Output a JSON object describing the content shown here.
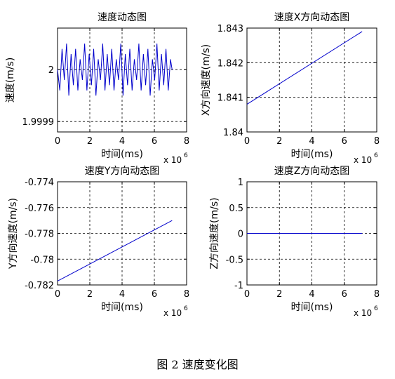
{
  "caption": "图 2  速度变化图",
  "chart_data": [
    {
      "type": "line",
      "title": "速度动态图",
      "xlabel": "时间(ms)",
      "ylabel": "速度(m/s)",
      "x_multiplier": "x 10",
      "x_multiplier_exp": "6",
      "xlim": [
        0,
        8
      ],
      "ylim": [
        1.99988,
        2.00008
      ],
      "xticks": [
        0,
        2,
        4,
        6,
        8
      ],
      "xtick_labels": [
        "0",
        "2",
        "4",
        "6",
        "8"
      ],
      "yticks": [
        1.9999,
        2.0
      ],
      "ytick_labels": [
        "1.9999",
        "2"
      ],
      "grid": true,
      "line_color": "#0000cc",
      "x": [
        0.0,
        0.14,
        0.28,
        0.42,
        0.56,
        0.7,
        0.84,
        0.98,
        1.12,
        1.26,
        1.4,
        1.54,
        1.68,
        1.82,
        1.96,
        2.1,
        2.24,
        2.38,
        2.52,
        2.66,
        2.8,
        2.94,
        3.08,
        3.22,
        3.36,
        3.5,
        3.64,
        3.78,
        3.92,
        4.06,
        4.2,
        4.34,
        4.48,
        4.62,
        4.76,
        4.9,
        5.04,
        5.18,
        5.32,
        5.46,
        5.6,
        5.74,
        5.88,
        6.02,
        6.16,
        6.3,
        6.44,
        6.58,
        6.72,
        6.86,
        7.0,
        7.1
      ],
      "y": [
        2.0,
        1.99996,
        2.00004,
        1.99998,
        2.00005,
        1.99995,
        2.00003,
        1.99997,
        2.00004,
        1.99996,
        2.00002,
        1.99998,
        2.00005,
        1.99996,
        2.00003,
        1.99997,
        2.00004,
        1.99995,
        2.00002,
        1.99998,
        2.00005,
        1.99996,
        2.00003,
        1.99997,
        2.00004,
        1.99996,
        2.00002,
        1.99998,
        2.00005,
        1.99995,
        2.00003,
        1.99997,
        2.00004,
        1.99996,
        2.00002,
        1.99998,
        2.00005,
        1.99996,
        2.00003,
        1.99997,
        2.00004,
        1.99995,
        2.00002,
        1.99998,
        2.00005,
        1.99996,
        2.00003,
        1.99997,
        2.00004,
        1.99996,
        2.00002,
        2.0
      ]
    },
    {
      "type": "line",
      "title": "速度X方向动态图",
      "xlabel": "时间(ms)",
      "ylabel": "X方向速度(m/s)",
      "x_multiplier": "x 10",
      "x_multiplier_exp": "6",
      "xlim": [
        0,
        8
      ],
      "ylim": [
        1.84,
        1.843
      ],
      "xticks": [
        0,
        2,
        4,
        6,
        8
      ],
      "xtick_labels": [
        "0",
        "2",
        "4",
        "6",
        "8"
      ],
      "yticks": [
        1.84,
        1.841,
        1.842,
        1.843
      ],
      "ytick_labels": [
        "1.84",
        "1.841",
        "1.842",
        "1.843"
      ],
      "grid": true,
      "line_color": "#0000cc",
      "x": [
        0.0,
        7.1
      ],
      "y": [
        1.8408,
        1.8429
      ]
    },
    {
      "type": "line",
      "title": "速度Y方向动态图",
      "xlabel": "时间(ms)",
      "ylabel": "Y方向速度(m/s)",
      "x_multiplier": "x 10",
      "x_multiplier_exp": "6",
      "xlim": [
        0,
        8
      ],
      "ylim": [
        -0.782,
        -0.774
      ],
      "xticks": [
        0,
        2,
        4,
        6,
        8
      ],
      "xtick_labels": [
        "0",
        "2",
        "4",
        "6",
        "8"
      ],
      "yticks": [
        -0.782,
        -0.78,
        -0.778,
        -0.776,
        -0.774
      ],
      "ytick_labels": [
        "-0.782",
        "-0.78",
        "-0.778",
        "-0.776",
        "-0.774"
      ],
      "grid": true,
      "line_color": "#0000cc",
      "x": [
        0.0,
        7.1
      ],
      "y": [
        -0.7817,
        -0.777
      ]
    },
    {
      "type": "line",
      "title": "速度Z方向动态图",
      "xlabel": "时间(ms)",
      "ylabel": "Z方向速度(m/s)",
      "x_multiplier": "x 10",
      "x_multiplier_exp": "6",
      "xlim": [
        0,
        8
      ],
      "ylim": [
        -1,
        1
      ],
      "xticks": [
        0,
        2,
        4,
        6,
        8
      ],
      "xtick_labels": [
        "0",
        "2",
        "4",
        "6",
        "8"
      ],
      "yticks": [
        -1,
        -0.5,
        0,
        0.5,
        1
      ],
      "ytick_labels": [
        "-1",
        "-0.5",
        "0",
        "0.5",
        "1"
      ],
      "grid": true,
      "line_color": "#0000cc",
      "x": [
        0.0,
        7.1
      ],
      "y": [
        0.0,
        0.0
      ]
    }
  ]
}
